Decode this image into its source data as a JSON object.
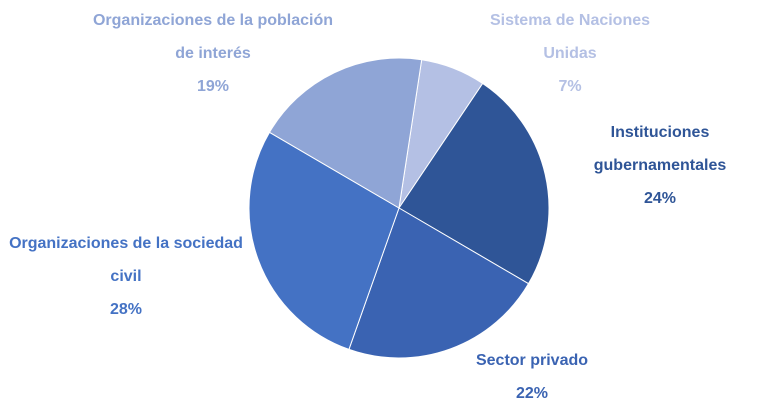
{
  "chart_data": {
    "type": "pie",
    "categories": [
      "Sistema de Naciones Unidas",
      "Instituciones gubernamentales",
      "Sector privado",
      "Organizaciones de la sociedad civil",
      "Organizaciones de la población de interés"
    ],
    "values": [
      7,
      24,
      22,
      28,
      19
    ],
    "value_labels": [
      "7%",
      "24%",
      "22%",
      "28%",
      "19%"
    ],
    "colors": [
      "#b4c0e4",
      "#2f5597",
      "#3a63b2",
      "#4472c4",
      "#8fa5d6"
    ]
  }
}
